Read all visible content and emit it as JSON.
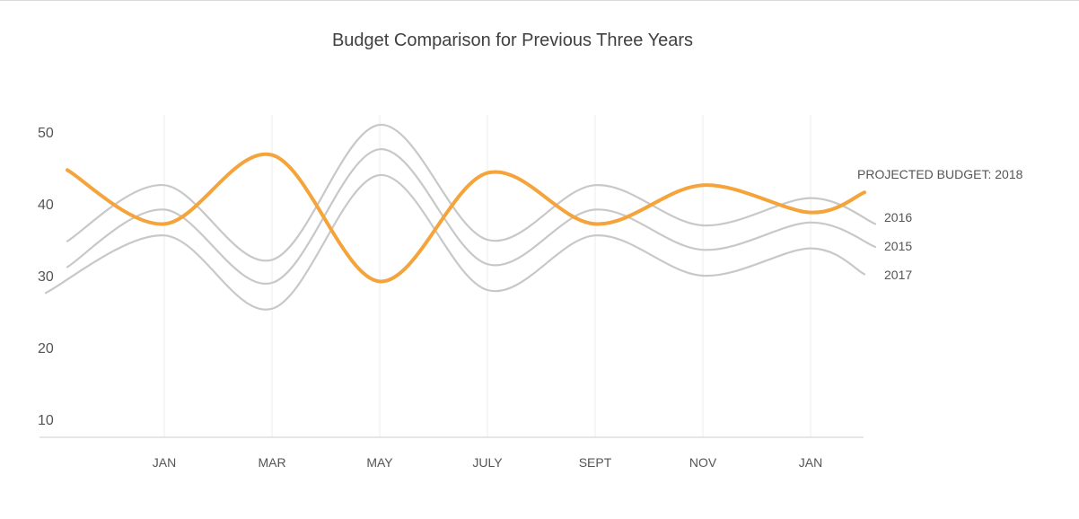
{
  "chart_data": {
    "type": "line",
    "title": "Budget Comparison for Previous Three Years",
    "xlabel": "",
    "ylabel": "",
    "x_ticks": [
      "JAN",
      "MAR",
      "MAY",
      "JULY",
      "SEPT",
      "NOV",
      "JAN"
    ],
    "y_ticks": [
      10,
      20,
      30,
      40,
      50
    ],
    "ylim": [
      7,
      52
    ],
    "grid": "vertical",
    "series": [
      {
        "name": "2016",
        "color": "#c8c8c8",
        "x": [
          -0.9,
          0,
          1,
          2,
          3,
          4,
          5,
          6,
          6.6
        ],
        "y": [
          34.8,
          42.6,
          32.2,
          51.0,
          35.0,
          42.6,
          37.0,
          40.8,
          37.2
        ]
      },
      {
        "name": "2015",
        "color": "#c8c8c8",
        "x": [
          -0.9,
          0,
          1,
          2,
          3,
          4,
          5,
          6,
          6.6
        ],
        "y": [
          31.2,
          39.2,
          29.0,
          47.6,
          31.6,
          39.2,
          33.6,
          37.4,
          34.0
        ]
      },
      {
        "name": "2017",
        "color": "#c8c8c8",
        "x": [
          -1.1,
          0,
          1,
          2,
          3,
          4,
          5,
          6,
          6.5
        ],
        "y": [
          27.6,
          35.6,
          25.4,
          44.0,
          28.0,
          35.6,
          30.0,
          33.8,
          30.2
        ]
      },
      {
        "name": "PROJECTED BUDGET: 2018",
        "color": "#f4a43a",
        "x": [
          -0.9,
          0,
          1,
          2,
          3,
          4,
          5,
          6,
          6.5
        ],
        "y": [
          44.7,
          37.2,
          46.8,
          29.2,
          44.3,
          37.2,
          42.6,
          38.8,
          41.6
        ]
      }
    ]
  }
}
